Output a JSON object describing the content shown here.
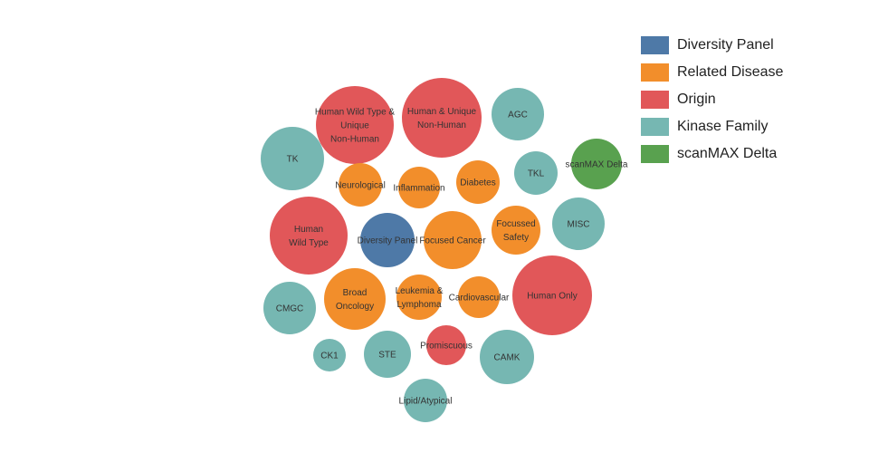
{
  "chart_data": {
    "type": "bubble",
    "title": "",
    "legend": {
      "placement": "top-right",
      "entries": [
        {
          "name": "Diversity Panel",
          "color": "#4e79a7"
        },
        {
          "name": "Related Disease",
          "color": "#f28e2b"
        },
        {
          "name": "Origin",
          "color": "#e15759"
        },
        {
          "name": "Kinase Family",
          "color": "#76b7b2"
        },
        {
          "name": "scanMAX Delta",
          "color": "#59a14f"
        }
      ]
    },
    "bubbles": [
      {
        "label": "Human Wild Type & Unique Non-Human",
        "category": "Origin",
        "size": 43
      },
      {
        "label": "Human & Unique Non-Human",
        "category": "Origin",
        "size": 44
      },
      {
        "label": "AGC",
        "category": "Kinase Family",
        "size": 29
      },
      {
        "label": "TK",
        "category": "Kinase Family",
        "size": 35
      },
      {
        "label": "TKL",
        "category": "Kinase Family",
        "size": 24
      },
      {
        "label": "scanMAX Delta",
        "category": "scanMAX Delta",
        "size": 28
      },
      {
        "label": "Neurological",
        "category": "Related Disease",
        "size": 24
      },
      {
        "label": "Inflammation",
        "category": "Related Disease",
        "size": 23
      },
      {
        "label": "Diabetes",
        "category": "Related Disease",
        "size": 24
      },
      {
        "label": "Human Wild Type",
        "category": "Origin",
        "size": 43
      },
      {
        "label": "Diversity Panel",
        "category": "Diversity Panel",
        "size": 30
      },
      {
        "label": "Focused Cancer",
        "category": "Related Disease",
        "size": 32
      },
      {
        "label": "Focussed Safety",
        "category": "Related Disease",
        "size": 27
      },
      {
        "label": "MISC",
        "category": "Kinase Family",
        "size": 29
      },
      {
        "label": "CMGC",
        "category": "Kinase Family",
        "size": 29
      },
      {
        "label": "Broad Oncology",
        "category": "Related Disease",
        "size": 34
      },
      {
        "label": "Leukemia & Lymphoma",
        "category": "Related Disease",
        "size": 25
      },
      {
        "label": "Cardiovascular",
        "category": "Related Disease",
        "size": 23
      },
      {
        "label": "Human Only",
        "category": "Origin",
        "size": 44
      },
      {
        "label": "CK1",
        "category": "Kinase Family",
        "size": 18
      },
      {
        "label": "STE",
        "category": "Kinase Family",
        "size": 26
      },
      {
        "label": "Promiscuous",
        "category": "Origin",
        "size": 22
      },
      {
        "label": "CAMK",
        "category": "Kinase Family",
        "size": 30
      },
      {
        "label": "Lipid/Atypical",
        "category": "Kinase Family",
        "size": 24
      }
    ]
  }
}
